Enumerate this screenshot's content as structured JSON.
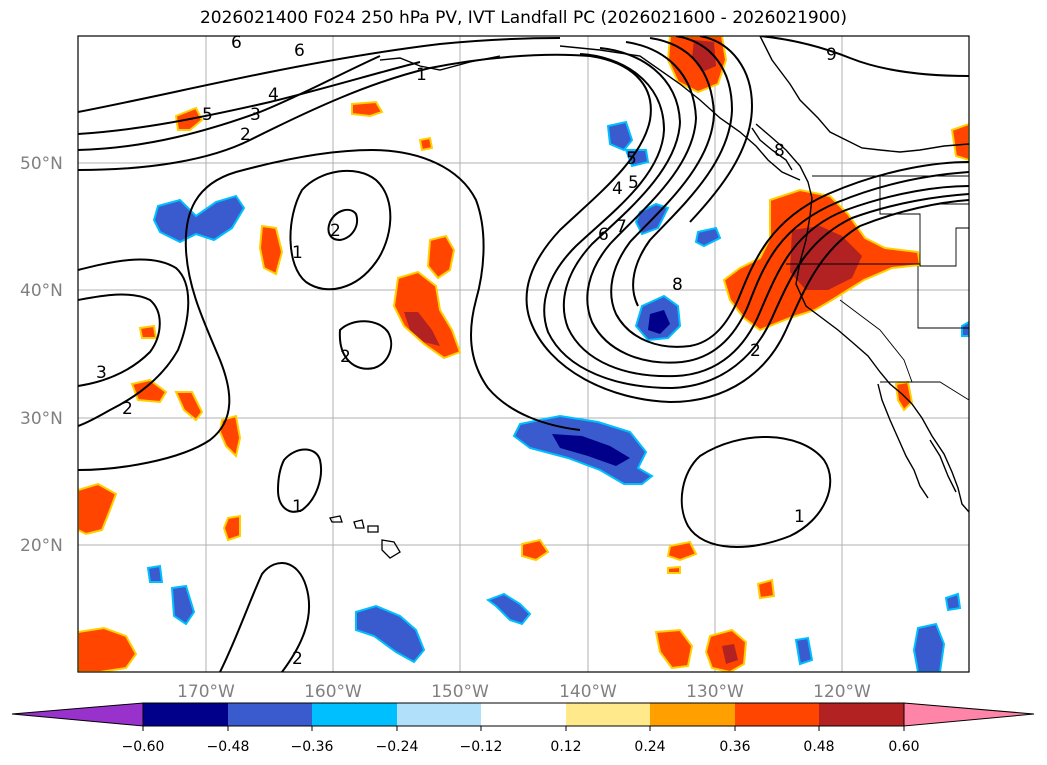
{
  "title": "2026021400 F024 250 hPa PV, IVT Landfall PC (2026021600 - 2026021900)",
  "axes": {
    "lat_labels": [
      "50°N",
      "40°N",
      "30°N",
      "20°N"
    ],
    "lon_labels": [
      "170°W",
      "160°W",
      "150°W",
      "140°W",
      "130°W",
      "120°W"
    ]
  },
  "contour_labels": [
    "6",
    "6",
    "9",
    "5",
    "4",
    "3",
    "2",
    "1",
    "2",
    "2",
    "5",
    "4",
    "5",
    "6",
    "7",
    "8",
    "8",
    "2",
    "3",
    "2",
    "1",
    "1",
    "1",
    "2"
  ],
  "colorbar": {
    "ticks": [
      "−0.60",
      "−0.48",
      "−0.36",
      "−0.24",
      "−0.12",
      "0.12",
      "0.24",
      "0.36",
      "0.48",
      "0.60"
    ],
    "colors": [
      "#9932cc",
      "#00008b",
      "#3a5bcd",
      "#00bfff",
      "#b0e0fa",
      "#ffffff",
      "#ffe98a",
      "#ffa000",
      "#ff4500",
      "#b22222",
      "#ff85a8"
    ]
  }
}
